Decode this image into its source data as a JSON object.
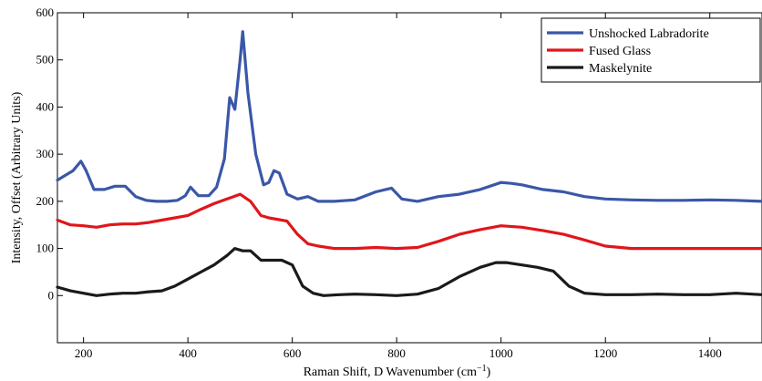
{
  "chart_data": {
    "type": "line",
    "xlabel": "Raman Shift, D Wavenumber (cm",
    "xlabel_sup": "−1",
    "xlabel_tail": ")",
    "ylabel": "Intensity, Offset (Arbitrary Units)",
    "xlim": [
      150,
      1500
    ],
    "ylim": [
      -100,
      600
    ],
    "x_ticks": [
      200,
      400,
      600,
      800,
      1000,
      1200,
      1400
    ],
    "x_tick_labels": [
      "200",
      "400",
      "600",
      "800",
      "1000",
      "1200",
      "1400"
    ],
    "y_ticks": [
      0,
      100,
      200,
      300,
      400,
      500,
      600
    ],
    "y_tick_labels": [
      "0",
      "100",
      "200",
      "300",
      "400",
      "500",
      "600"
    ],
    "grid": false,
    "legend_position": "top-right",
    "series": [
      {
        "name": "Unshocked Labradorite",
        "color": "#3a57a8",
        "x": [
          150,
          165,
          180,
          195,
          205,
          220,
          240,
          260,
          280,
          300,
          320,
          340,
          360,
          380,
          395,
          405,
          420,
          440,
          455,
          470,
          480,
          490,
          500,
          505,
          515,
          530,
          545,
          555,
          565,
          575,
          590,
          610,
          630,
          650,
          680,
          720,
          760,
          790,
          810,
          840,
          880,
          920,
          960,
          1000,
          1020,
          1040,
          1080,
          1120,
          1160,
          1200,
          1250,
          1300,
          1350,
          1400,
          1450,
          1500
        ],
        "y": [
          245,
          255,
          265,
          285,
          265,
          225,
          225,
          232,
          232,
          210,
          202,
          200,
          200,
          202,
          212,
          230,
          212,
          212,
          230,
          290,
          420,
          395,
          500,
          560,
          430,
          300,
          235,
          240,
          265,
          260,
          215,
          205,
          210,
          200,
          200,
          203,
          220,
          228,
          205,
          200,
          210,
          215,
          225,
          240,
          238,
          235,
          225,
          220,
          210,
          205,
          203,
          202,
          202,
          203,
          202,
          200
        ]
      },
      {
        "name": "Fused Glass",
        "color": "#e0161b",
        "x": [
          150,
          175,
          200,
          225,
          250,
          275,
          300,
          325,
          350,
          375,
          400,
          425,
          450,
          475,
          500,
          520,
          540,
          555,
          570,
          590,
          610,
          630,
          650,
          680,
          720,
          760,
          800,
          840,
          880,
          920,
          960,
          1000,
          1040,
          1080,
          1120,
          1160,
          1200,
          1250,
          1300,
          1350,
          1400,
          1450,
          1500
        ],
        "y": [
          160,
          150,
          148,
          145,
          150,
          152,
          152,
          155,
          160,
          165,
          170,
          183,
          195,
          205,
          215,
          200,
          170,
          165,
          162,
          158,
          130,
          110,
          105,
          100,
          100,
          102,
          100,
          102,
          115,
          130,
          140,
          148,
          145,
          138,
          130,
          118,
          105,
          100,
          100,
          100,
          100,
          100,
          100
        ]
      },
      {
        "name": "Maskelynite",
        "color": "#1a1a1a",
        "x": [
          150,
          175,
          200,
          225,
          250,
          275,
          300,
          325,
          350,
          375,
          400,
          425,
          450,
          475,
          490,
          505,
          520,
          540,
          560,
          580,
          600,
          620,
          640,
          660,
          690,
          720,
          760,
          800,
          840,
          880,
          920,
          960,
          990,
          1010,
          1040,
          1070,
          1100,
          1130,
          1160,
          1200,
          1250,
          1300,
          1350,
          1400,
          1450,
          1500
        ],
        "y": [
          18,
          10,
          5,
          0,
          3,
          5,
          5,
          8,
          10,
          20,
          35,
          50,
          65,
          85,
          100,
          95,
          95,
          75,
          75,
          75,
          65,
          20,
          5,
          0,
          2,
          3,
          2,
          0,
          3,
          15,
          40,
          60,
          70,
          70,
          65,
          60,
          52,
          20,
          5,
          2,
          2,
          3,
          2,
          2,
          5,
          2
        ]
      }
    ]
  }
}
